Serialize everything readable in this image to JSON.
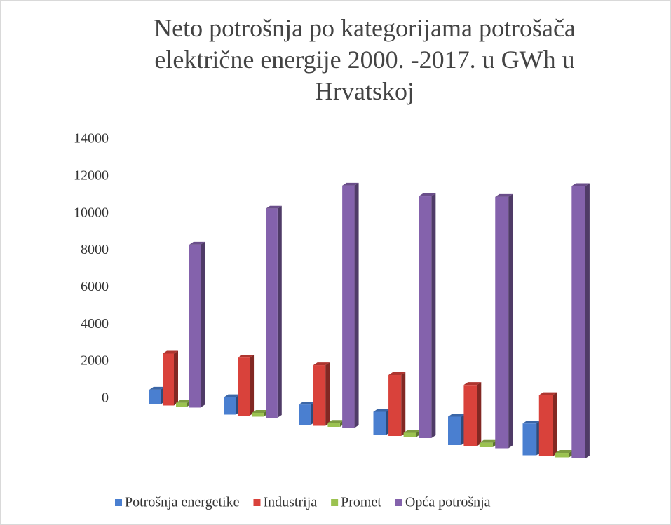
{
  "chart_data": {
    "type": "bar3d",
    "title": "Neto potrošnja po kategorijama potrošača električne energije 2000. -2017. u GWh u Hrvatskoj",
    "categories": [
      null,
      null,
      null,
      null,
      null,
      null
    ],
    "series": [
      {
        "name": "Potrošnja energetike",
        "color": "#4a7fd0",
        "values": [
          800,
          900,
          1000,
          1100,
          1300,
          1400
        ]
      },
      {
        "name": "Industrija",
        "color": "#d9423b",
        "values": [
          2800,
          3000,
          3000,
          2900,
          2800,
          2700
        ]
      },
      {
        "name": "Promet",
        "color": "#9bc250",
        "values": [
          200,
          200,
          200,
          200,
          200,
          200
        ]
      },
      {
        "name": "Opća potrošnja",
        "color": "#8462ac",
        "values": [
          8800,
          10800,
          12000,
          11500,
          11500,
          12000
        ]
      }
    ],
    "ylim": [
      0,
      14000
    ],
    "yticks": [
      0,
      2000,
      4000,
      6000,
      8000,
      10000,
      12000,
      14000
    ],
    "legend": "bottom"
  }
}
